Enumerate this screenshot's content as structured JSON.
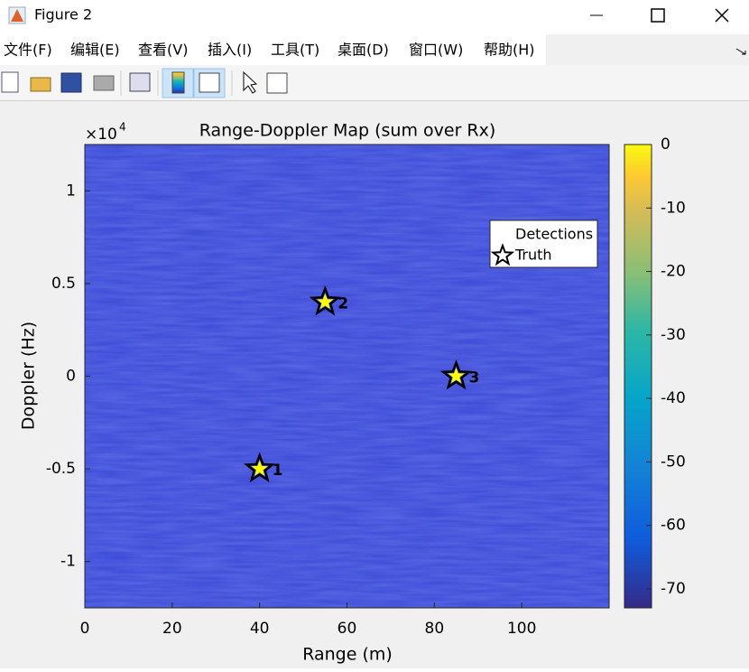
{
  "window": {
    "title": "Figure 2",
    "menu": [
      "文件(F)",
      "编辑(E)",
      "查看(V)",
      "插入(I)",
      "工具(T)",
      "桌面(D)",
      "窗口(W)",
      "帮助(H)"
    ]
  },
  "chart_data": {
    "type": "heatmap",
    "title": "Range-Doppler Map (sum over Rx)",
    "x_label": "Range (m)",
    "y_label": "Doppler (Hz)",
    "y_exponent_base": "×10",
    "y_exponent_power": "4",
    "xlim": [
      0,
      120
    ],
    "xticks": [
      0,
      20,
      40,
      60,
      80,
      100
    ],
    "ylim": [
      -12500,
      12500
    ],
    "yticks": [
      {
        "value": -10000,
        "label": "-1"
      },
      {
        "value": -5000,
        "label": "-0.5"
      },
      {
        "value": 0,
        "label": "0"
      },
      {
        "value": 5000,
        "label": "0.5"
      },
      {
        "value": 10000,
        "label": "1"
      }
    ],
    "background_color": "#3b48d6",
    "series": [
      {
        "name": "Detections",
        "color": "#ffff00",
        "x": [
          40,
          55,
          85
        ],
        "y": [
          -5000,
          4000,
          0
        ]
      },
      {
        "name": "Truth",
        "color": "#000000",
        "x": [
          40,
          55,
          85
        ],
        "y": [
          -5000,
          4000,
          0
        ]
      }
    ],
    "point_labels": [
      "1",
      "2",
      "3"
    ],
    "legend": "upper right",
    "colorbar": {
      "lim": [
        -73,
        0
      ],
      "ticks": [
        0,
        -10,
        -20,
        -30,
        -40,
        -50,
        -60,
        -70
      ]
    }
  }
}
